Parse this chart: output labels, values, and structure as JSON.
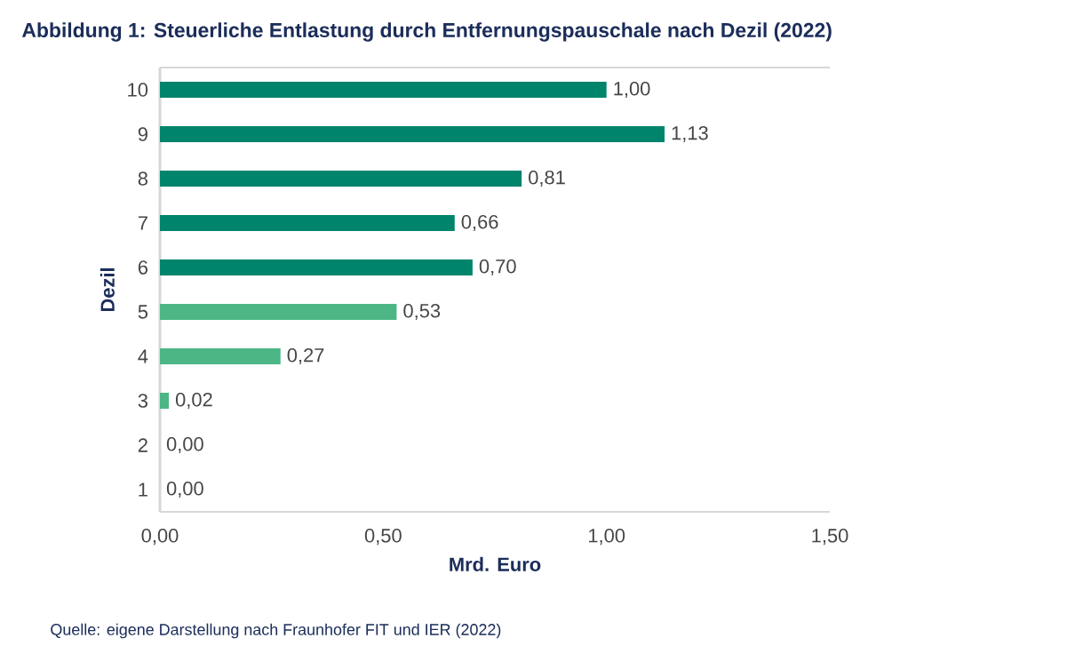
{
  "chart_data": {
    "type": "bar",
    "orientation": "horizontal",
    "title": "Abbildung 1: Steuerliche Entlastung durch Entfernungspauschale nach Dezil (2022)",
    "xlabel": "Mrd. Euro",
    "ylabel": "Dezil",
    "categories": [
      "10",
      "9",
      "8",
      "7",
      "6",
      "5",
      "4",
      "3",
      "2",
      "1"
    ],
    "values": [
      1.0,
      1.13,
      0.81,
      0.66,
      0.7,
      0.53,
      0.27,
      0.02,
      0.0,
      0.0
    ],
    "value_labels": [
      "1,00",
      "1,13",
      "0,81",
      "0,66",
      "0,70",
      "0,53",
      "0,27",
      "0,02",
      "0,00",
      "0,00"
    ],
    "colors": [
      "#00846c",
      "#00846c",
      "#00846c",
      "#00846c",
      "#00846c",
      "#4cb685",
      "#4cb685",
      "#4cb685",
      "#4cb685",
      "#4cb685"
    ],
    "xlim": [
      0,
      1.5
    ],
    "xticks": [
      {
        "value": 0,
        "label": "0,00"
      },
      {
        "value": 0.5,
        "label": "0,50"
      },
      {
        "value": 1,
        "label": "1,00"
      },
      {
        "value": 1.5,
        "label": "1,50"
      }
    ],
    "annotations": [
      "Quelle: eigene Darstellung nach Fraunhofer FIT und IER (2022)"
    ]
  }
}
